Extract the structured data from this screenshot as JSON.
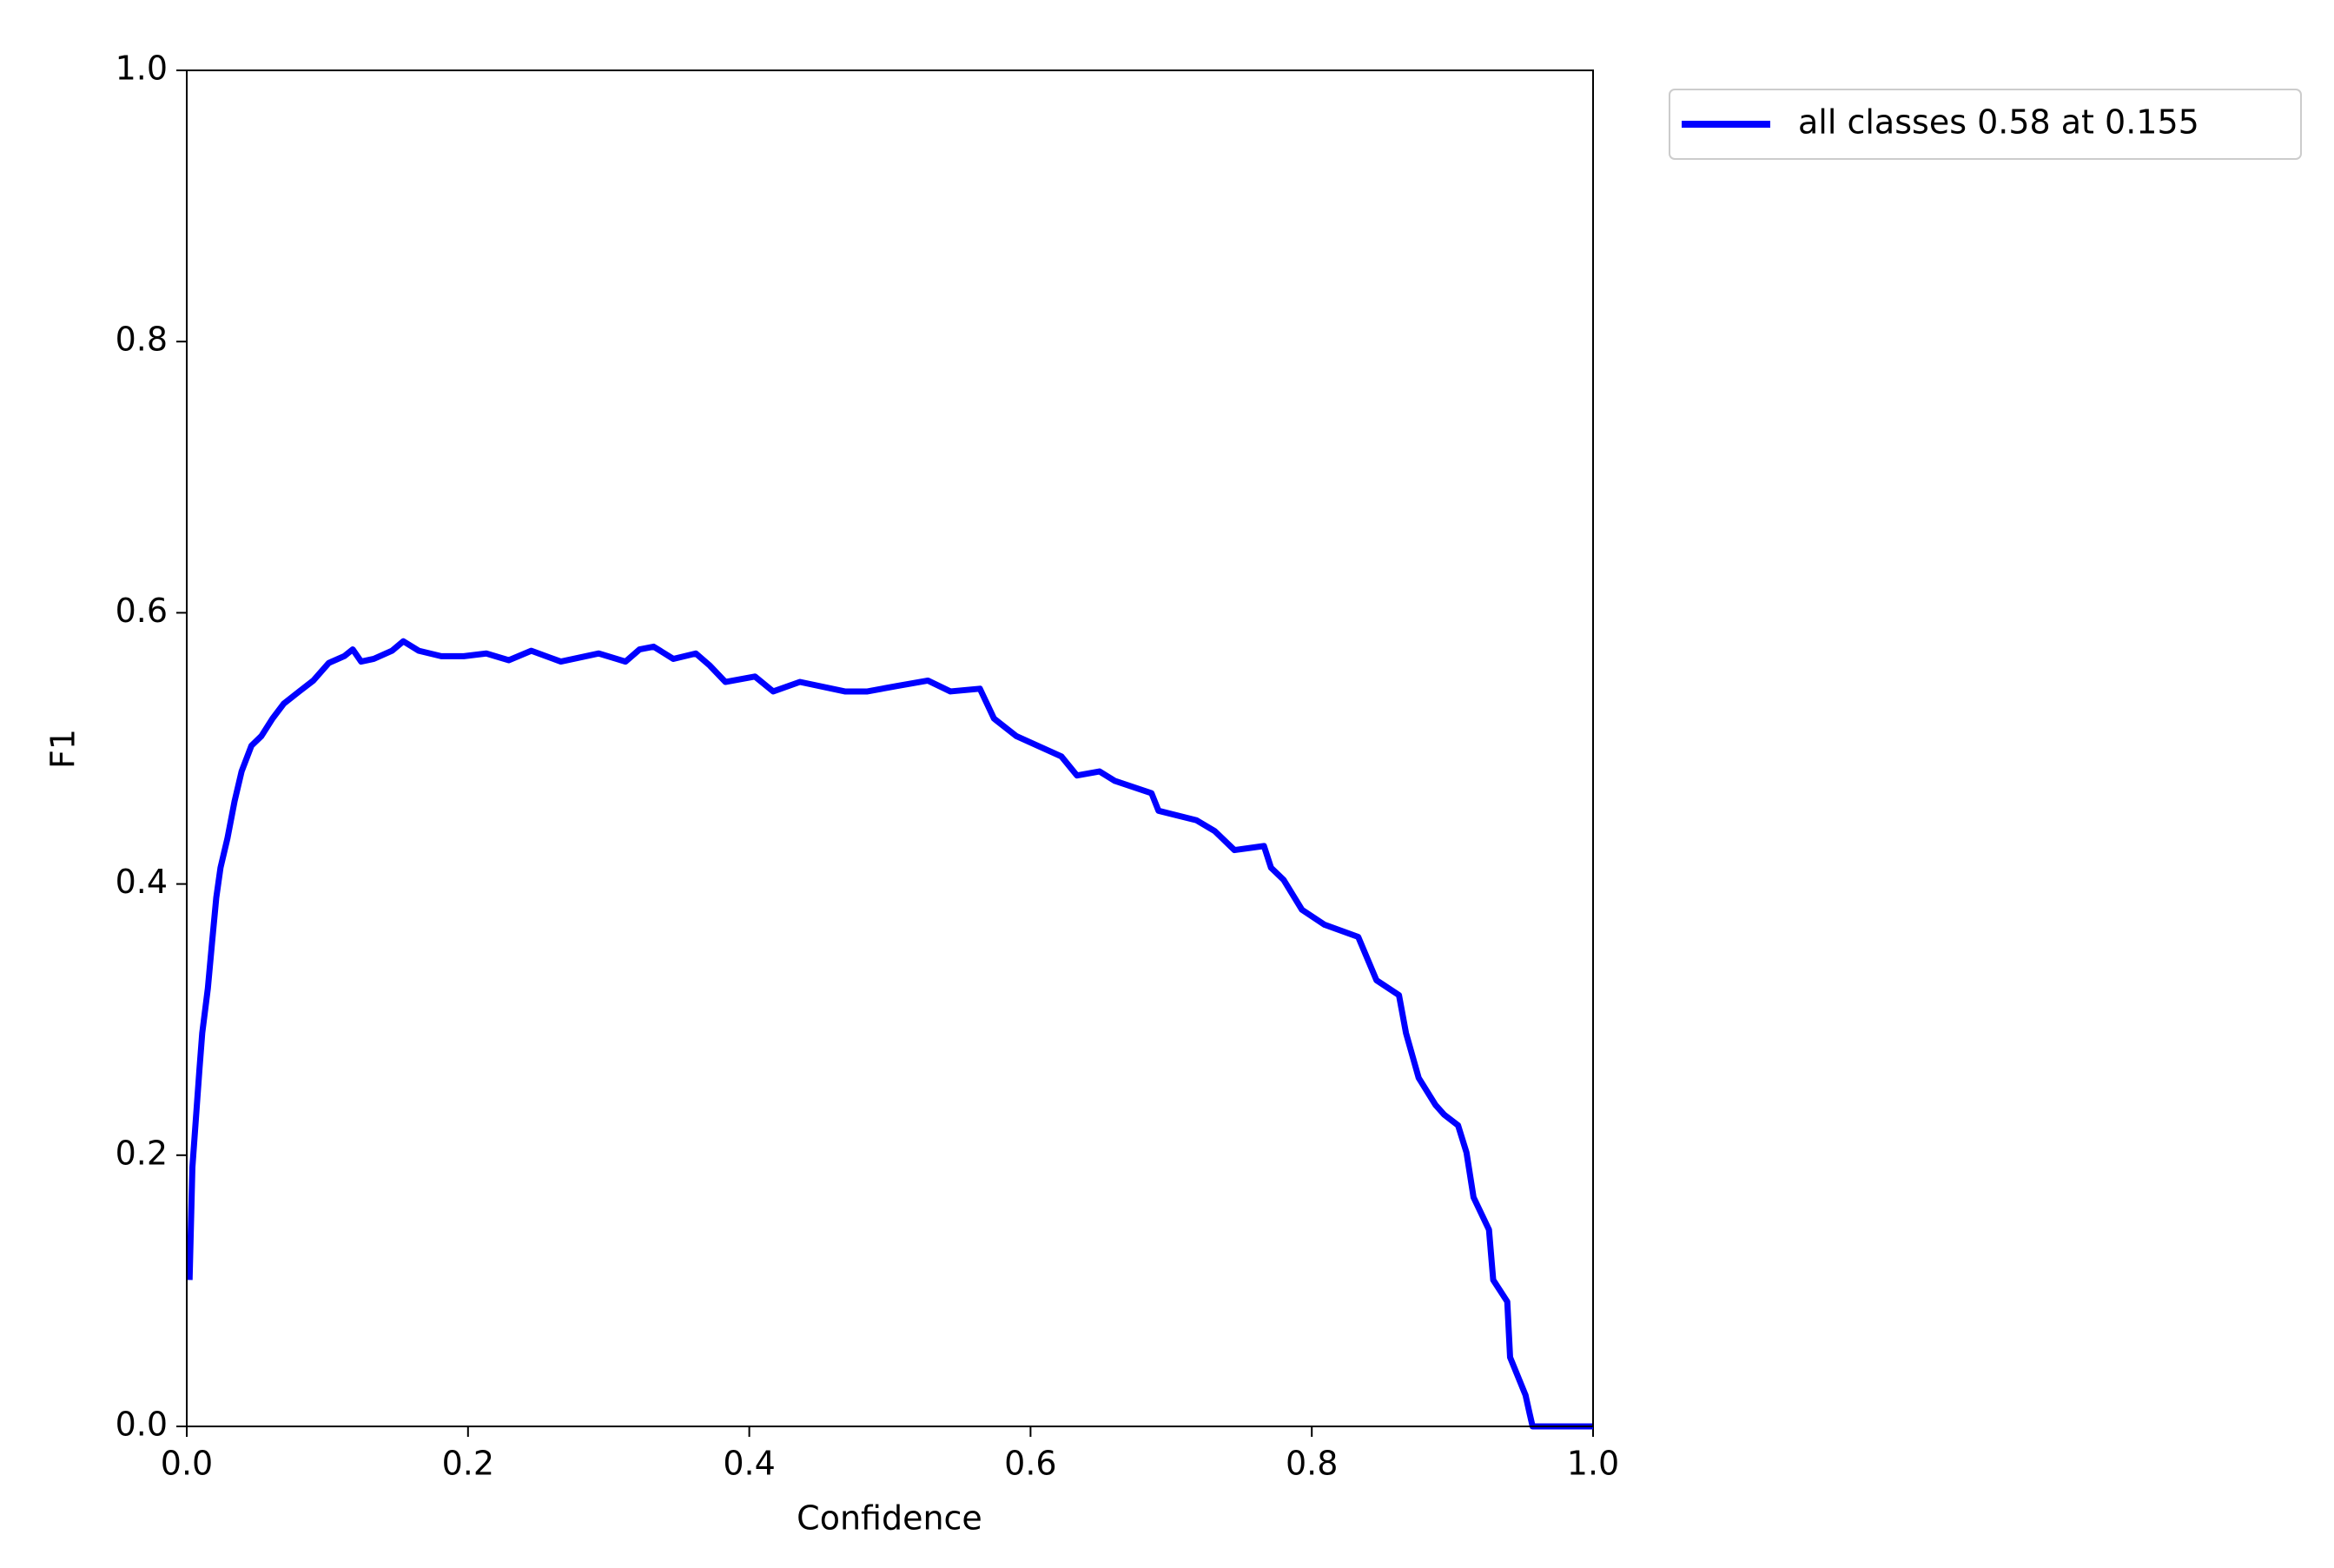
{
  "chart_data": {
    "type": "line",
    "xlabel": "Confidence",
    "ylabel": "F1",
    "xlim": [
      0,
      1
    ],
    "ylim": [
      0,
      1
    ],
    "xticks": [
      {
        "value": 0,
        "label": "0.0"
      },
      0.2,
      0.4,
      0.6,
      0.8,
      {
        "value": 1,
        "label": "1.0"
      }
    ],
    "yticks": [
      {
        "value": 0,
        "label": "0.0"
      },
      0.2,
      0.4,
      0.6,
      0.8,
      {
        "value": 1,
        "label": "1.0"
      }
    ],
    "grid": false,
    "legend": "outside-upper-right",
    "x": [
      0.002,
      0.004,
      0.009,
      0.011,
      0.015,
      0.018,
      0.021,
      0.024,
      0.029,
      0.034,
      0.039,
      0.046,
      0.053,
      0.061,
      0.069,
      0.08,
      0.09,
      0.101,
      0.112,
      0.118,
      0.124,
      0.133,
      0.146,
      0.154,
      0.165,
      0.181,
      0.197,
      0.213,
      0.229,
      0.245,
      0.266,
      0.293,
      0.312,
      0.322,
      0.332,
      0.346,
      0.362,
      0.372,
      0.383,
      0.404,
      0.417,
      0.436,
      0.468,
      0.484,
      0.505,
      0.527,
      0.543,
      0.564,
      0.574,
      0.59,
      0.622,
      0.633,
      0.649,
      0.66,
      0.686,
      0.691,
      0.718,
      0.731,
      0.745,
      0.766,
      0.771,
      0.78,
      0.793,
      0.809,
      0.833,
      0.846,
      0.862,
      0.867,
      0.876,
      0.888,
      0.894,
      0.904,
      0.91,
      0.915,
      0.926,
      0.929,
      0.939,
      0.941,
      0.952,
      0.955,
      0.957,
      1.0
    ],
    "series": [
      {
        "name": "all classes 0.58 at 0.155",
        "color": "#0000ff",
        "values": [
          0.108,
          0.191,
          0.263,
          0.29,
          0.323,
          0.357,
          0.39,
          0.412,
          0.434,
          0.461,
          0.483,
          0.502,
          0.509,
          0.522,
          0.533,
          0.542,
          0.55,
          0.563,
          0.568,
          0.573,
          0.564,
          0.566,
          0.572,
          0.579,
          0.572,
          0.568,
          0.568,
          0.57,
          0.565,
          0.572,
          0.564,
          0.57,
          0.564,
          0.573,
          0.575,
          0.566,
          0.57,
          0.561,
          0.549,
          0.553,
          0.542,
          0.549,
          0.542,
          0.542,
          0.546,
          0.55,
          0.542,
          0.544,
          0.522,
          0.509,
          0.494,
          0.48,
          0.483,
          0.476,
          0.467,
          0.454,
          0.447,
          0.439,
          0.425,
          0.428,
          0.412,
          0.403,
          0.381,
          0.37,
          0.361,
          0.329,
          0.318,
          0.29,
          0.257,
          0.237,
          0.23,
          0.222,
          0.202,
          0.169,
          0.145,
          0.108,
          0.092,
          0.051,
          0.023,
          0.009,
          0.0,
          0.0
        ]
      }
    ]
  }
}
